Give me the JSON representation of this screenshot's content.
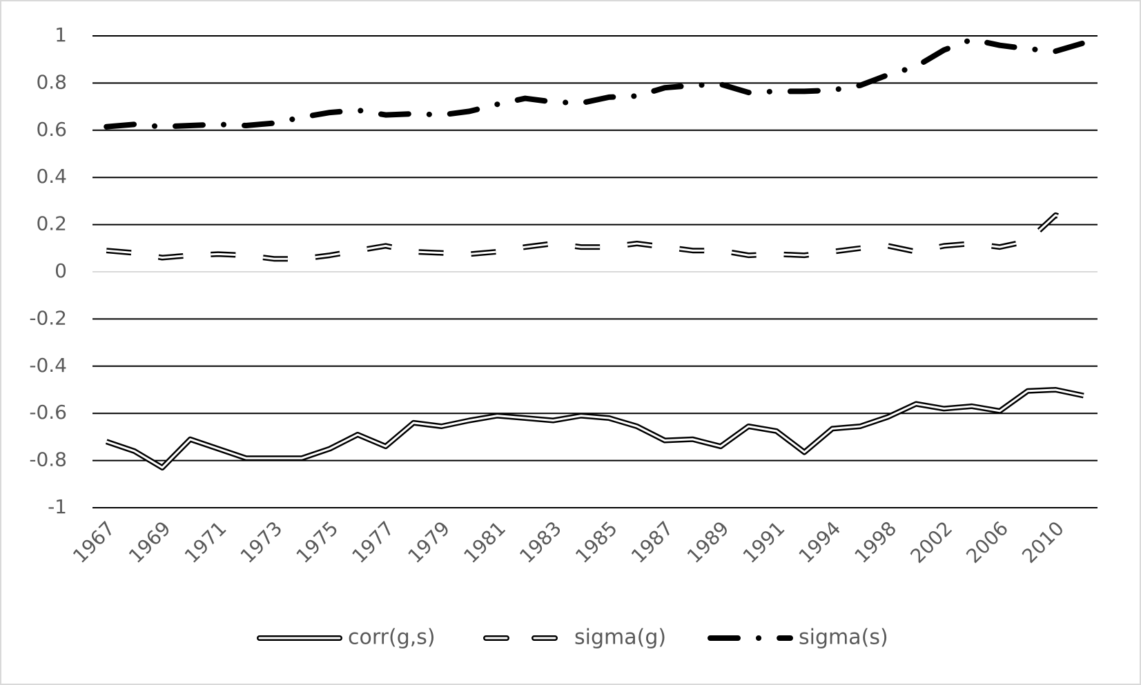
{
  "chart_data": {
    "type": "line",
    "categories": [
      "1967",
      null,
      "1969",
      null,
      "1971",
      null,
      "1973",
      null,
      "1975",
      null,
      "1977",
      null,
      "1979",
      null,
      "1981",
      null,
      "1983",
      null,
      "1985",
      null,
      "1987",
      null,
      "1989",
      null,
      "1991",
      null,
      "1994",
      null,
      "1998",
      null,
      "2002",
      null,
      "2006",
      null,
      "2010",
      null
    ],
    "series": [
      {
        "name": "corr(g,s)",
        "color": "#000000",
        "values": [
          -0.72,
          -0.76,
          -0.83,
          -0.71,
          -0.75,
          -0.79,
          -0.79,
          -0.79,
          -0.75,
          -0.69,
          -0.74,
          -0.64,
          -0.655,
          -0.63,
          -0.61,
          -0.62,
          -0.63,
          -0.61,
          -0.62,
          -0.655,
          -0.715,
          -0.71,
          -0.74,
          -0.655,
          -0.675,
          -0.765,
          -0.665,
          -0.655,
          -0.615,
          -0.56,
          -0.58,
          -0.57,
          -0.59,
          -0.505,
          -0.5,
          -0.525
        ]
      },
      {
        "name": "sigma(g)",
        "color": "#000000",
        "values": [
          0.09,
          0.08,
          0.06,
          0.07,
          0.075,
          0.07,
          0.055,
          0.055,
          0.07,
          0.09,
          0.11,
          0.085,
          0.08,
          0.075,
          0.085,
          0.105,
          0.12,
          0.105,
          0.105,
          0.12,
          0.105,
          0.09,
          0.09,
          0.07,
          0.075,
          0.07,
          0.085,
          0.1,
          0.11,
          0.085,
          0.11,
          0.12,
          0.105,
          0.13,
          0.24,
          0.2
        ]
      },
      {
        "name": "sigma(s)",
        "color": "#000000",
        "values": [
          0.615,
          0.625,
          0.615,
          0.62,
          0.625,
          0.62,
          0.63,
          0.655,
          0.675,
          0.685,
          0.665,
          0.67,
          0.665,
          0.68,
          0.71,
          0.735,
          0.72,
          0.715,
          0.74,
          0.745,
          0.78,
          0.79,
          0.795,
          0.76,
          0.765,
          0.765,
          0.77,
          0.79,
          0.835,
          0.87,
          0.94,
          0.985,
          0.96,
          0.945,
          0.935,
          0.97
        ]
      }
    ],
    "ylim": [
      -1,
      1
    ],
    "yticks": [
      -1,
      -0.8,
      -0.6,
      -0.4,
      -0.2,
      0,
      0.2,
      0.4,
      0.6,
      0.8,
      1
    ],
    "grid": true,
    "legend": "bottom"
  }
}
